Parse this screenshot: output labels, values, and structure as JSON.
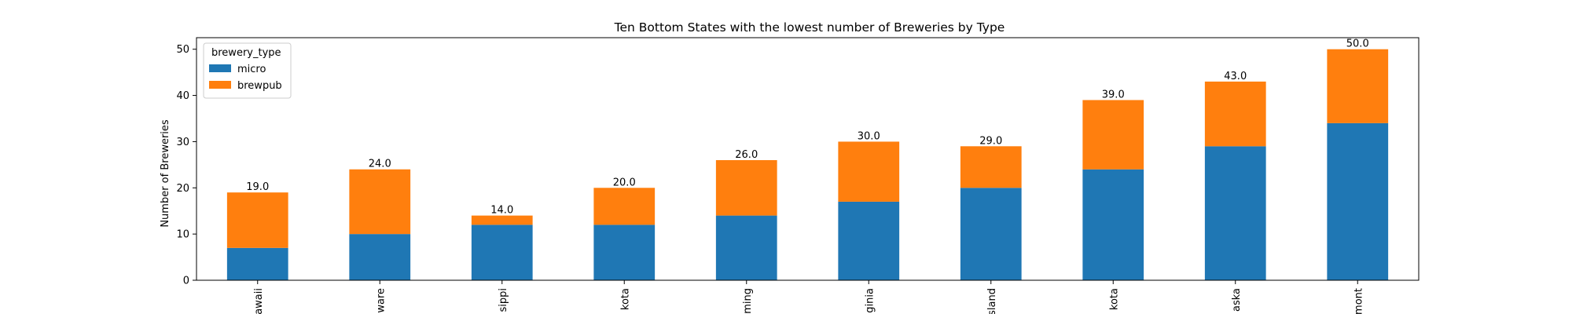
{
  "chart_data": {
    "type": "bar",
    "stacked": true,
    "title": "Ten Bottom States with the lowest number of Breweries by Type",
    "xlabel": "",
    "ylabel": "Number of Breweries",
    "ylim": [
      0,
      52.5
    ],
    "yticks": [
      0,
      10,
      20,
      30,
      40,
      50
    ],
    "categories": [
      "awaii",
      "ware",
      "sippi",
      "kota",
      "ming",
      "ginia",
      "Island",
      "kota",
      "aska",
      "mont"
    ],
    "legend": {
      "title": "brewery_type",
      "placement": "upper-left"
    },
    "series": [
      {
        "name": "micro",
        "color": "#1f77b4",
        "values": [
          7,
          10,
          12,
          12,
          14,
          17,
          20,
          24,
          29,
          34
        ]
      },
      {
        "name": "brewpub",
        "color": "#ff7f0e",
        "values": [
          12,
          14,
          2,
          8,
          12,
          13,
          9,
          15,
          14,
          16
        ]
      }
    ],
    "totals": [
      19,
      24,
      14,
      20,
      26,
      30,
      29,
      39,
      43,
      50
    ],
    "total_labels": [
      "19.0",
      "24.0",
      "14.0",
      "20.0",
      "26.0",
      "30.0",
      "29.0",
      "39.0",
      "43.0",
      "50.0"
    ],
    "grid": false
  }
}
